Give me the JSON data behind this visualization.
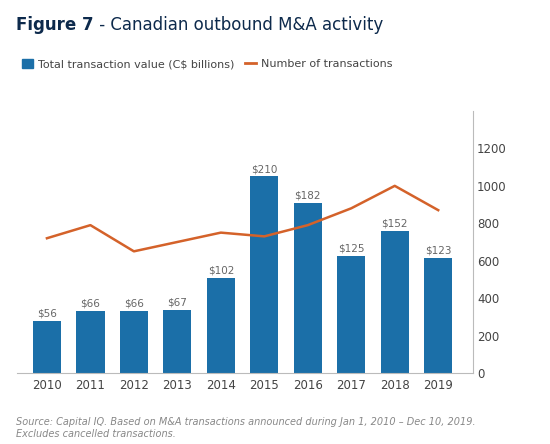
{
  "years": [
    2010,
    2011,
    2012,
    2013,
    2014,
    2015,
    2016,
    2017,
    2018,
    2019
  ],
  "bar_values": [
    56,
    66,
    66,
    67,
    102,
    210,
    182,
    125,
    152,
    123
  ],
  "bar_labels": [
    "$56",
    "$66",
    "$66",
    "$67",
    "$102",
    "$210",
    "$182",
    "$125",
    "$152",
    "$123"
  ],
  "line_values": [
    720,
    790,
    650,
    700,
    750,
    730,
    790,
    880,
    1000,
    870
  ],
  "bar_color": "#1B6FA8",
  "line_color": "#D4622A",
  "title_bold": "Figure 7",
  "title_rest": " - Canadian outbound M&A activity",
  "title_color": "#0D2A4C",
  "legend_bar_label": "Total transaction value (C$ billions)",
  "legend_line_label": "Number of transactions",
  "ylim_left": [
    0,
    280
  ],
  "ylim_right": [
    0,
    1400
  ],
  "yticks_right": [
    0,
    200,
    400,
    600,
    800,
    1000,
    1200
  ],
  "source_text": "Source: Capital IQ. Based on M&A transactions announced during Jan 1, 2010 – Dec 10, 2019.\nExcludes cancelled transactions.",
  "background_color": "#FFFFFF",
  "bar_label_fontsize": 7.5,
  "axis_tick_fontsize": 8.5,
  "title_fontsize": 12,
  "legend_fontsize": 8,
  "source_fontsize": 7
}
